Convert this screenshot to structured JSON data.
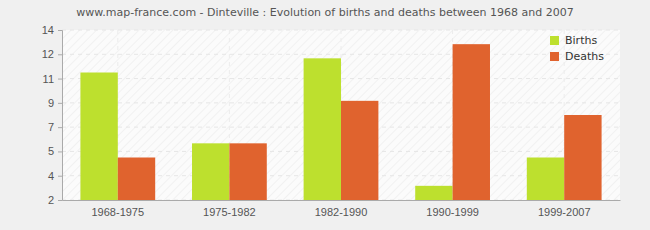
{
  "chart_data": {
    "type": "bar",
    "title": "www.map-france.com - Dinteville : Evolution of births and deaths between 1968 and 2007",
    "categories": [
      "1968-1975",
      "1975-1982",
      "1982-1990",
      "1990-1999",
      "1999-2007"
    ],
    "series": [
      {
        "name": "Births",
        "color": "#bde02e",
        "values": [
          11,
          6,
          12,
          3,
          5
        ]
      },
      {
        "name": "Deaths",
        "color": "#e0632e",
        "values": [
          5,
          6,
          9,
          13,
          8
        ]
      }
    ],
    "ylim": [
      2,
      14
    ],
    "yticks": [
      {
        "value": 2,
        "label": "2"
      },
      {
        "value": 3.714,
        "label": "4"
      },
      {
        "value": 5.429,
        "label": "5"
      },
      {
        "value": 7.143,
        "label": "7"
      },
      {
        "value": 8.857,
        "label": "9"
      },
      {
        "value": 10.571,
        "label": "11"
      },
      {
        "value": 12.286,
        "label": "12"
      },
      {
        "value": 14,
        "label": "14"
      }
    ],
    "grid": true,
    "legend": "top-right"
  }
}
